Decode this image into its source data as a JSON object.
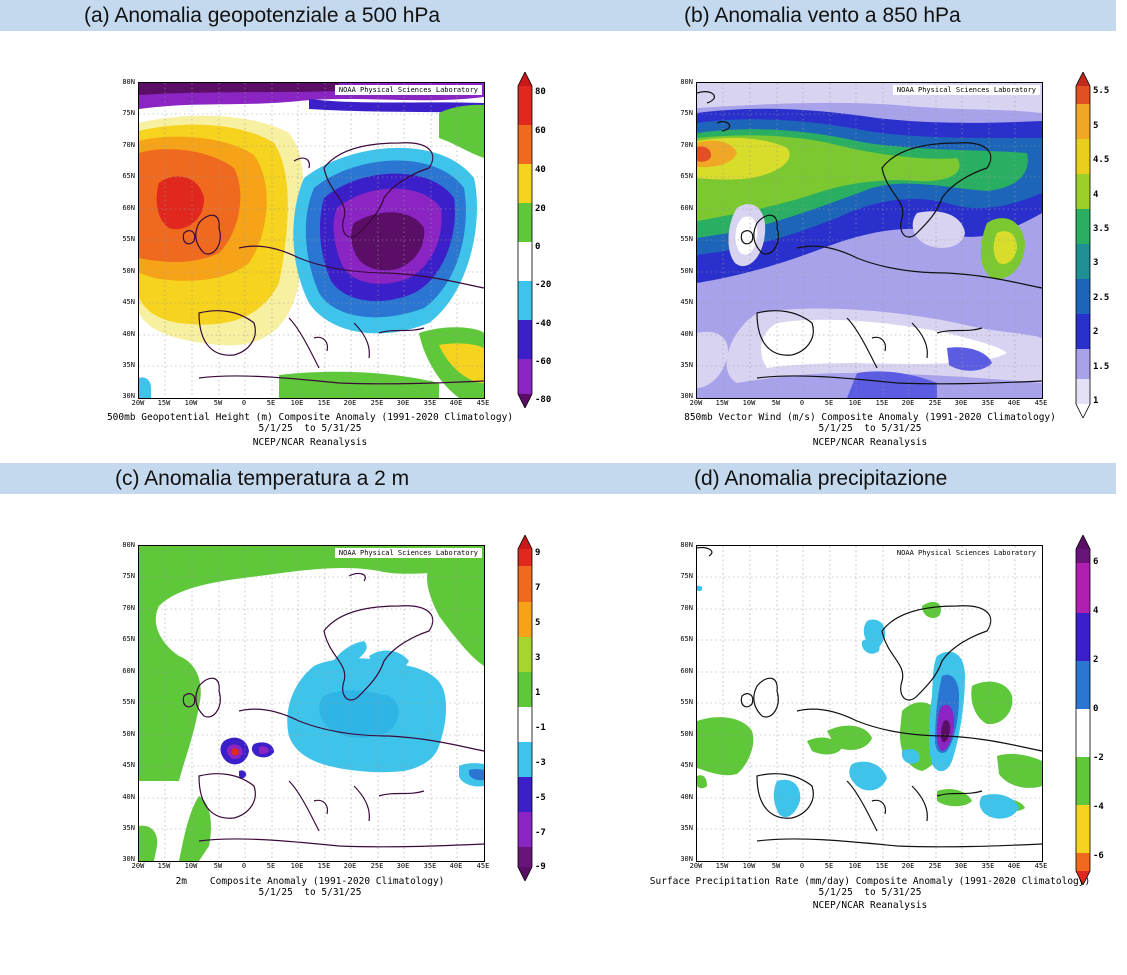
{
  "headers": {
    "a": "(a) Anomalia geopotenziale a 500 hPa",
    "b": "(b) Anomalia vento a 850 hPa",
    "c": "(c) Anomalia temperatura a 2 m",
    "d": "(d) Anomalia precipitazione"
  },
  "credit": "NOAA Physical Sciences Laboratory",
  "lat_labels": [
    "80N",
    "75N",
    "70N",
    "65N",
    "60N",
    "55N",
    "50N",
    "45N",
    "40N",
    "35N",
    "30N"
  ],
  "lon_labels": [
    "20W",
    "15W",
    "10W",
    "5W",
    "0",
    "5E",
    "10E",
    "15E",
    "20E",
    "25E",
    "30E",
    "35E",
    "40E",
    "45E"
  ],
  "panels": {
    "a": {
      "caption_line1": "500mb Geopotential Height (m) Composite Anomaly (1991-2020 Climatology)",
      "caption_line2": "5/1/25  to 5/31/25",
      "caption_line3": "NCEP/NCAR Reanalysis",
      "colorbar_labels": [
        "80",
        "60",
        "40",
        "20",
        "0",
        "-20",
        "-40",
        "-60",
        "-80"
      ]
    },
    "b": {
      "caption_line1": "850mb Vector Wind (m/s) Composite Anomaly (1991-2020 Climatology)",
      "caption_line2": "5/1/25  to 5/31/25",
      "caption_line3": "NCEP/NCAR Reanalysis",
      "colorbar_labels": [
        "5.5",
        "5",
        "4.5",
        "4",
        "3.5",
        "3",
        "2.5",
        "2",
        "1.5",
        "1"
      ]
    },
    "c": {
      "caption_line1": "2m    Composite Anomaly (1991-2020 Climatology)",
      "caption_line2": "5/1/25  to 5/31/25",
      "caption_line3": "",
      "colorbar_labels": [
        "9",
        "7",
        "5",
        "3",
        "1",
        "-1",
        "-3",
        "-5",
        "-7",
        "-9"
      ]
    },
    "d": {
      "caption_line1": "Surface Precipitation Rate (mm/day) Composite Anomaly (1991-2020 Climatology)",
      "caption_line2": "5/1/25  to 5/31/25",
      "caption_line3": "NCEP/NCAR Reanalysis",
      "colorbar_labels": [
        "6",
        "4",
        "2",
        "0",
        "-2",
        "-4",
        "-6"
      ]
    }
  },
  "colors": {
    "header_bg": "#c5d9ee",
    "warm": [
      "#f6f0a0",
      "#f5d31e",
      "#f6a317",
      "#ef6a1e",
      "#e0281e"
    ],
    "cool": [
      "#3ec4ea",
      "#2a76d2",
      "#3b1fc8",
      "#8a24c2",
      "#5a0e66"
    ],
    "green": "#5ec83a",
    "wind": [
      "#ffffff",
      "#d9d3f2",
      "#a8a2ea",
      "#5c5ce2",
      "#2930cc",
      "#1d65b8",
      "#1e8f92",
      "#2aae62",
      "#7bc830",
      "#d8dc2a",
      "#f0a726",
      "#e05022"
    ]
  }
}
